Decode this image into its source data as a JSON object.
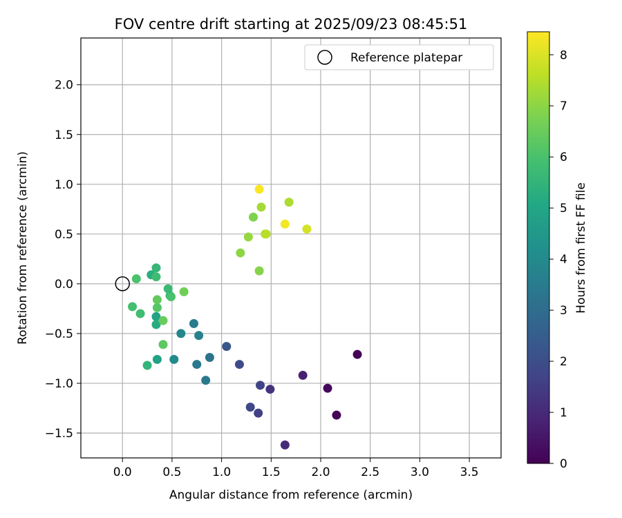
{
  "chart_data": {
    "type": "scatter",
    "title": "FOV centre drift starting at 2025/09/23 08:45:51",
    "xlabel": "Angular distance from reference (arcmin)",
    "ylabel": "Rotation from reference (arcmin)",
    "xlim": [
      -0.42,
      3.82
    ],
    "ylim": [
      -1.75,
      2.47
    ],
    "x_ticks": [
      0.0,
      0.5,
      1.0,
      1.5,
      2.0,
      2.5,
      3.0,
      3.5
    ],
    "x_tick_labels": [
      "0.0",
      "0.5",
      "1.0",
      "1.5",
      "2.0",
      "2.5",
      "3.0",
      "3.5"
    ],
    "y_ticks": [
      -1.5,
      -1.0,
      -0.5,
      0.0,
      0.5,
      1.0,
      1.5,
      2.0
    ],
    "y_tick_labels": [
      "−1.5",
      "−1.0",
      "−0.5",
      "0.0",
      "0.5",
      "1.0",
      "1.5",
      "2.0"
    ],
    "grid": true,
    "legend": {
      "position": "top-right",
      "entries": [
        "Reference platepar"
      ]
    },
    "reference_point": {
      "x": 0.0,
      "y": 0.0
    },
    "colorbar": {
      "label": "Hours from first FF file",
      "colormap": "viridis",
      "range": [
        0,
        8.45
      ],
      "ticks": [
        0,
        1,
        2,
        3,
        4,
        5,
        6,
        7,
        8
      ],
      "tick_labels": [
        "0",
        "1",
        "2",
        "3",
        "4",
        "5",
        "6",
        "7",
        "8"
      ]
    },
    "points": [
      {
        "x": 2.37,
        "y": -0.71,
        "c": 0.05
      },
      {
        "x": 2.16,
        "y": -1.32,
        "c": 0.1
      },
      {
        "x": 2.07,
        "y": -1.05,
        "c": 0.2
      },
      {
        "x": 1.82,
        "y": -0.92,
        "c": 0.75
      },
      {
        "x": 1.64,
        "y": -1.62,
        "c": 1.0
      },
      {
        "x": 1.49,
        "y": -1.06,
        "c": 1.25
      },
      {
        "x": 1.39,
        "y": -1.02,
        "c": 1.7
      },
      {
        "x": 1.37,
        "y": -1.3,
        "c": 1.6
      },
      {
        "x": 1.29,
        "y": -1.24,
        "c": 1.8
      },
      {
        "x": 1.18,
        "y": -0.81,
        "c": 1.9
      },
      {
        "x": 1.05,
        "y": -0.63,
        "c": 2.3
      },
      {
        "x": 0.88,
        "y": -0.74,
        "c": 3.2
      },
      {
        "x": 0.84,
        "y": -0.97,
        "c": 3.4
      },
      {
        "x": 0.75,
        "y": -0.81,
        "c": 3.45
      },
      {
        "x": 0.77,
        "y": -0.52,
        "c": 3.6
      },
      {
        "x": 0.72,
        "y": -0.4,
        "c": 3.5
      },
      {
        "x": 0.59,
        "y": -0.5,
        "c": 3.9
      },
      {
        "x": 0.52,
        "y": -0.76,
        "c": 4.0
      },
      {
        "x": 0.35,
        "y": -0.76,
        "c": 4.8
      },
      {
        "x": 0.25,
        "y": -0.82,
        "c": 5.5
      },
      {
        "x": 0.34,
        "y": -0.33,
        "c": 4.9
      },
      {
        "x": 0.34,
        "y": -0.41,
        "c": 5.2
      },
      {
        "x": 0.41,
        "y": -0.61,
        "c": 6.3
      },
      {
        "x": 0.41,
        "y": -0.37,
        "c": 6.5
      },
      {
        "x": 0.35,
        "y": -0.24,
        "c": 6.2
      },
      {
        "x": 0.35,
        "y": -0.16,
        "c": 6.4
      },
      {
        "x": 0.18,
        "y": -0.3,
        "c": 5.8
      },
      {
        "x": 0.1,
        "y": -0.23,
        "c": 5.9
      },
      {
        "x": 0.46,
        "y": -0.05,
        "c": 5.7
      },
      {
        "x": 0.48,
        "y": -0.12,
        "c": 5.6
      },
      {
        "x": 0.49,
        "y": -0.13,
        "c": 6.0
      },
      {
        "x": 0.62,
        "y": -0.08,
        "c": 6.6
      },
      {
        "x": 0.29,
        "y": 0.09,
        "c": 5.3
      },
      {
        "x": 0.34,
        "y": 0.07,
        "c": 5.8
      },
      {
        "x": 0.34,
        "y": 0.16,
        "c": 5.6
      },
      {
        "x": 0.14,
        "y": 0.05,
        "c": 6.0
      },
      {
        "x": 1.38,
        "y": 0.13,
        "c": 6.9
      },
      {
        "x": 1.19,
        "y": 0.31,
        "c": 7.0
      },
      {
        "x": 1.27,
        "y": 0.47,
        "c": 7.1
      },
      {
        "x": 1.32,
        "y": 0.67,
        "c": 6.8
      },
      {
        "x": 1.4,
        "y": 0.77,
        "c": 7.3
      },
      {
        "x": 1.44,
        "y": 0.5,
        "c": 7.5
      },
      {
        "x": 1.45,
        "y": 0.5,
        "c": 7.55
      },
      {
        "x": 1.38,
        "y": 0.95,
        "c": 8.4
      },
      {
        "x": 1.64,
        "y": 0.6,
        "c": 8.3
      },
      {
        "x": 1.68,
        "y": 0.82,
        "c": 7.4
      },
      {
        "x": 1.86,
        "y": 0.55,
        "c": 7.9
      }
    ]
  }
}
